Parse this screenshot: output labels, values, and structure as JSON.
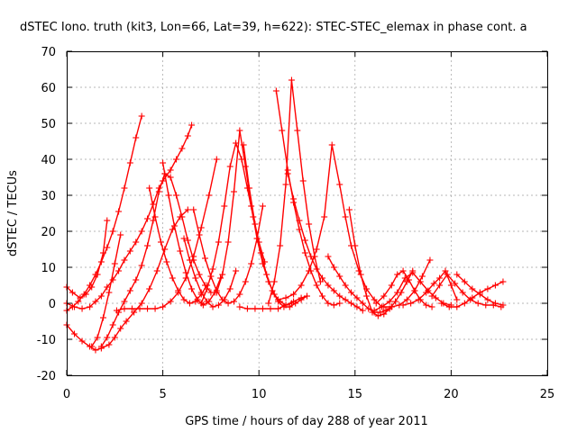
{
  "chart_data": {
    "type": "scatter",
    "title": "dSTEC Iono. truth (kit3, Lon=66, Lat=39, h=622): STEC-STEC_elemax in phase cont. a",
    "xlabel": "GPS time / hours of day 288 of year 2011",
    "ylabel": "dSTEC  / TECUs",
    "xlim": [
      0,
      25
    ],
    "ylim": [
      -20,
      70
    ],
    "xticks": [
      "0",
      "5",
      "10",
      "15",
      "20",
      "25"
    ],
    "yticks": [
      "-20",
      "-10",
      "0",
      "10",
      "20",
      "30",
      "40",
      "50",
      "60",
      "70"
    ],
    "grid": true,
    "marker": "+",
    "color": "#ff0000",
    "series": [
      {
        "x": [
          0.0,
          0.3,
          0.6,
          0.9,
          1.2,
          1.5,
          1.8,
          2.1,
          2.4,
          2.7,
          3.0,
          3.3,
          3.6,
          3.9
        ],
        "y": [
          -2.0,
          -1.0,
          0.5,
          2.5,
          5.0,
          8.0,
          11.5,
          15.5,
          20.0,
          25.5,
          32.0,
          39.0,
          46.0,
          52.0
        ]
      },
      {
        "x": [
          0.0,
          0.3,
          0.7,
          1.0,
          1.3,
          1.6,
          1.9,
          2.1
        ],
        "y": [
          4.5,
          3.0,
          1.5,
          2.5,
          4.5,
          8.0,
          14.0,
          23.0
        ]
      },
      {
        "x": [
          0.0,
          0.4,
          0.8,
          1.2,
          1.5,
          1.8,
          2.1,
          2.4,
          2.7,
          3.0,
          3.3,
          3.6,
          3.9,
          4.2,
          4.5,
          4.8,
          5.0,
          5.4,
          5.7,
          6.0,
          6.3,
          6.5
        ],
        "y": [
          0.0,
          -1.0,
          -1.5,
          -1.0,
          0.5,
          2.0,
          4.5,
          6.5,
          9.0,
          12.0,
          14.5,
          17.0,
          20.0,
          23.5,
          27.5,
          32.0,
          34.0,
          37.0,
          40.0,
          43.0,
          46.5,
          49.5
        ]
      },
      {
        "x": [
          0.0,
          0.4,
          0.8,
          1.2,
          1.5,
          1.8,
          2.2,
          2.5,
          2.8,
          3.1,
          3.5,
          3.9,
          4.3,
          4.7,
          5.1,
          5.5,
          5.9,
          6.3
        ],
        "y": [
          -6.0,
          -8.5,
          -10.5,
          -12.0,
          -13.0,
          -12.5,
          -11.5,
          -9.5,
          -7.0,
          -5.0,
          -2.5,
          0.0,
          4.0,
          9.0,
          15.0,
          20.5,
          24.0,
          26.0
        ]
      },
      {
        "x": [
          1.8,
          2.1,
          2.4,
          2.7,
          3.0,
          3.3,
          3.6,
          3.9,
          4.2,
          4.5,
          4.8,
          5.1,
          5.4,
          5.7,
          6.0,
          6.3,
          6.6,
          6.9,
          7.2,
          7.5
        ],
        "y": [
          -12.0,
          -9.5,
          -6.0,
          -2.5,
          0.5,
          3.5,
          6.5,
          10.5,
          16.0,
          23.0,
          31.0,
          36.0,
          35.0,
          30.0,
          24.0,
          17.5,
          12.0,
          8.0,
          5.0,
          3.0
        ]
      },
      {
        "x": [
          1.3,
          1.6,
          1.9,
          2.2,
          2.5,
          2.8
        ],
        "y": [
          -12.0,
          -9.5,
          -4.0,
          3.0,
          11.0,
          19.0
        ]
      },
      {
        "x": [
          2.6,
          3.0,
          3.4,
          3.8,
          4.2,
          4.6,
          5.0,
          5.4,
          5.8,
          6.2,
          6.6,
          7.0,
          7.4,
          7.8
        ],
        "y": [
          -2.0,
          -1.5,
          -1.5,
          -1.5,
          -1.5,
          -1.5,
          -1.0,
          0.5,
          3.0,
          7.0,
          13.0,
          21.0,
          30.0,
          40.0
        ]
      },
      {
        "x": [
          4.3,
          4.6,
          4.9,
          5.2,
          5.5,
          5.8,
          6.1,
          6.4,
          6.7,
          7.0,
          7.3
        ],
        "y": [
          32.0,
          24.0,
          17.0,
          11.5,
          7.0,
          3.5,
          1.0,
          0.0,
          0.5,
          2.5,
          5.0
        ]
      },
      {
        "x": [
          5.0,
          5.3,
          5.6,
          5.9,
          6.2,
          6.5,
          6.8,
          7.1,
          7.4,
          7.7,
          8.0
        ],
        "y": [
          39.0,
          30.0,
          21.5,
          14.5,
          8.5,
          4.0,
          1.0,
          -0.5,
          0.5,
          3.0,
          7.0
        ]
      },
      {
        "x": [
          6.1,
          6.4,
          6.7,
          7.0,
          7.3,
          7.6,
          7.9,
          8.2,
          8.5,
          8.8
        ],
        "y": [
          18.0,
          12.0,
          7.0,
          3.0,
          0.5,
          -1.0,
          -0.5,
          1.0,
          4.0,
          9.0
        ]
      },
      {
        "x": [
          6.6,
          6.9,
          7.2,
          7.5,
          7.8,
          8.1,
          8.4,
          8.7,
          9.0,
          9.3,
          9.6,
          9.9,
          10.2
        ],
        "y": [
          26.0,
          19.0,
          12.5,
          7.5,
          3.5,
          1.0,
          0.0,
          0.5,
          2.5,
          6.0,
          11.0,
          18.0,
          27.0
        ]
      },
      {
        "x": [
          7.0,
          7.3,
          7.6,
          7.9,
          8.2,
          8.5,
          8.8,
          9.1,
          9.4,
          9.7,
          10.0,
          10.3
        ],
        "y": [
          0.0,
          4.0,
          9.5,
          17.0,
          27.0,
          38.0,
          44.5,
          40.0,
          32.0,
          24.0,
          17.0,
          11.5
        ]
      },
      {
        "x": [
          7.8,
          8.1,
          8.4,
          8.7,
          9.0,
          9.3,
          9.6,
          9.9,
          10.2,
          10.5,
          10.8,
          11.1,
          11.4,
          11.7
        ],
        "y": [
          3.0,
          8.0,
          17.0,
          31.0,
          48.0,
          38.0,
          27.0,
          18.0,
          11.0,
          6.0,
          2.5,
          0.5,
          -0.5,
          0.0
        ]
      },
      {
        "x": [
          9.2,
          9.5,
          9.8,
          10.1,
          10.4,
          10.7,
          11.0,
          11.3,
          11.6,
          11.9,
          12.2,
          12.5
        ],
        "y": [
          44.0,
          32.0,
          22.0,
          14.0,
          8.0,
          3.5,
          0.5,
          -1.0,
          -1.0,
          0.0,
          1.0,
          2.0
        ]
      },
      {
        "x": [
          9.0,
          9.4,
          9.8,
          10.2,
          10.6,
          11.0,
          11.4,
          11.8,
          12.2,
          12.5
        ],
        "y": [
          -1.0,
          -1.5,
          -1.5,
          -1.5,
          -1.5,
          -1.5,
          -0.5,
          0.5,
          1.5,
          2.0
        ]
      },
      {
        "x": [
          10.5,
          10.8,
          11.1,
          11.4,
          11.7,
          12.0,
          12.3,
          12.6,
          12.9,
          13.2
        ],
        "y": [
          0.0,
          6.0,
          16.0,
          33.0,
          62.0,
          48.0,
          34.0,
          22.0,
          13.0,
          6.0
        ]
      },
      {
        "x": [
          10.9,
          11.2,
          11.5,
          11.8,
          12.1,
          12.4,
          12.7,
          13.0,
          13.3,
          13.6,
          13.9,
          14.2
        ],
        "y": [
          59.0,
          48.0,
          37.0,
          28.0,
          20.5,
          14.0,
          9.0,
          5.0,
          2.0,
          0.0,
          -0.5,
          0.0
        ]
      },
      {
        "x": [
          11.5,
          11.8,
          12.1,
          12.4,
          12.7,
          13.0,
          13.3,
          13.6,
          13.9,
          14.2,
          14.5,
          14.8,
          15.1,
          15.4
        ],
        "y": [
          36.0,
          29.0,
          23.0,
          17.5,
          13.0,
          9.5,
          7.0,
          5.0,
          3.5,
          2.0,
          1.0,
          0.0,
          -1.0,
          -2.0
        ]
      },
      {
        "x": [
          11.0,
          11.4,
          11.8,
          12.2,
          12.6,
          13.0,
          13.4,
          13.8,
          14.2,
          14.5,
          14.8,
          15.2,
          15.6,
          16.0,
          16.4
        ],
        "y": [
          1.0,
          1.5,
          2.5,
          5.0,
          9.0,
          15.0,
          24.0,
          44.0,
          33.0,
          24.0,
          16.0,
          9.0,
          4.0,
          1.0,
          -1.0
        ]
      },
      {
        "x": [
          13.6,
          13.9,
          14.2,
          14.5,
          14.8,
          15.1,
          15.4,
          15.7,
          16.0,
          16.3,
          16.6,
          16.9
        ],
        "y": [
          13.0,
          10.0,
          7.5,
          5.0,
          3.0,
          1.5,
          0.0,
          -1.5,
          -2.5,
          -2.5,
          -2.0,
          -1.0
        ]
      },
      {
        "x": [
          14.7,
          15.0,
          15.3,
          15.6,
          15.9,
          16.2,
          16.5,
          16.8,
          17.1,
          17.4,
          17.7,
          18.0
        ],
        "y": [
          26.0,
          16.0,
          8.0,
          2.0,
          -2.5,
          -3.5,
          -3.0,
          -1.5,
          0.5,
          3.0,
          6.0,
          9.0
        ]
      },
      {
        "x": [
          16.0,
          16.4,
          16.8,
          17.2,
          17.6,
          18.0,
          18.4,
          18.8,
          19.2,
          19.6,
          20.0
        ],
        "y": [
          -2.0,
          -1.0,
          0.5,
          3.0,
          7.0,
          8.5,
          6.0,
          3.5,
          1.5,
          0.0,
          -0.5
        ]
      },
      {
        "x": [
          16.1,
          16.5,
          16.9,
          17.2,
          17.5,
          17.8,
          18.1,
          18.4,
          18.7,
          19.0
        ],
        "y": [
          0.0,
          2.0,
          5.0,
          8.0,
          9.0,
          6.5,
          3.5,
          1.0,
          -0.5,
          -1.0
        ]
      },
      {
        "x": [
          16.5,
          16.9,
          17.3,
          17.7,
          18.1,
          18.5,
          18.9
        ],
        "y": [
          -1.0,
          -1.0,
          -0.5,
          1.0,
          3.5,
          7.5,
          12.0
        ]
      },
      {
        "x": [
          17.5,
          17.9,
          18.3,
          18.7,
          19.1,
          19.4,
          19.7,
          20.0,
          20.3
        ],
        "y": [
          -0.5,
          0.0,
          1.0,
          3.0,
          5.5,
          7.0,
          9.0,
          5.0,
          1.0
        ]
      },
      {
        "x": [
          19.0,
          19.4,
          19.8,
          20.2,
          20.6,
          21.0,
          21.4,
          21.8,
          22.2,
          22.6
        ],
        "y": [
          2.0,
          5.0,
          8.0,
          5.5,
          3.0,
          1.0,
          0.0,
          -0.5,
          -0.5,
          -1.0
        ]
      },
      {
        "x": [
          19.5,
          19.9,
          20.3,
          20.7,
          21.1,
          21.5,
          21.9,
          22.3,
          22.7
        ],
        "y": [
          0.0,
          -1.0,
          -1.0,
          0.0,
          1.5,
          3.0,
          4.0,
          5.0,
          6.0
        ]
      },
      {
        "x": [
          20.3,
          20.7,
          21.1,
          21.5,
          21.9,
          22.3,
          22.7
        ],
        "y": [
          8.0,
          6.0,
          4.0,
          2.5,
          1.0,
          0.0,
          -0.5
        ]
      }
    ]
  }
}
